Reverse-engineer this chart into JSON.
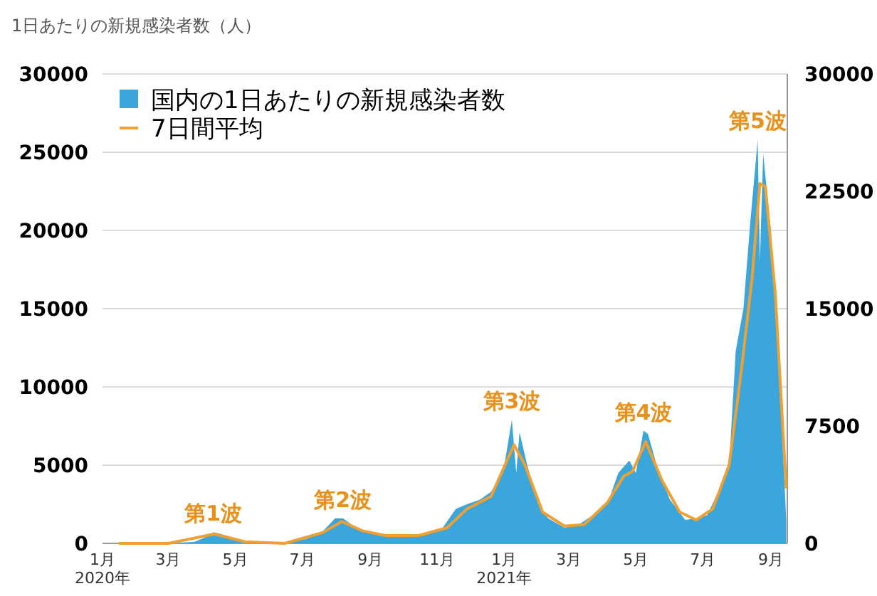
{
  "chart_data": {
    "type": "area",
    "title": "1日あたりの新規感染者数（人）",
    "legend": "top left",
    "grid": "y",
    "xlim": [
      "2020-01-01",
      "2021-09-16"
    ],
    "xticks": [
      {
        "value": "2020-01-01",
        "label": "1月\n2020年"
      },
      {
        "value": "2020-03-01",
        "label": "3月"
      },
      {
        "value": "2020-05-01",
        "label": "5月"
      },
      {
        "value": "2020-07-01",
        "label": "7月"
      },
      {
        "value": "2020-09-01",
        "label": "9月"
      },
      {
        "value": "2020-11-01",
        "label": "11月"
      },
      {
        "value": "2021-01-01",
        "label": "1月\n2021年"
      },
      {
        "value": "2021-03-01",
        "label": "3月"
      },
      {
        "value": "2021-05-01",
        "label": "5月"
      },
      {
        "value": "2021-07-01",
        "label": "7月"
      },
      {
        "value": "2021-09-01",
        "label": "9月"
      }
    ],
    "ylim": [
      0,
      30000
    ],
    "yticks": [
      0,
      5000,
      10000,
      15000,
      20000,
      25000,
      30000
    ],
    "y2lim": [
      0,
      30000
    ],
    "y2ticks": [
      0,
      7500,
      15000,
      22500,
      30000
    ],
    "series": [
      {
        "name": "国内の1日あたりの新規感染者数",
        "type": "area",
        "color": "#3aa6dc",
        "x": [
          "2020-01-16",
          "2020-03-01",
          "2020-03-25",
          "2020-04-04",
          "2020-04-11",
          "2020-04-18",
          "2020-05-01",
          "2020-05-15",
          "2020-06-01",
          "2020-06-20",
          "2020-07-05",
          "2020-07-20",
          "2020-07-31",
          "2020-08-07",
          "2020-08-15",
          "2020-08-25",
          "2020-09-05",
          "2020-09-20",
          "2020-10-05",
          "2020-10-20",
          "2020-11-05",
          "2020-11-18",
          "2020-11-28",
          "2020-12-10",
          "2020-12-20",
          "2020-12-31",
          "2021-01-08",
          "2021-01-12",
          "2021-01-15",
          "2021-01-22",
          "2021-02-01",
          "2021-02-10",
          "2021-02-25",
          "2021-03-10",
          "2021-03-25",
          "2021-04-05",
          "2021-04-15",
          "2021-04-25",
          "2021-05-01",
          "2021-05-08",
          "2021-05-12",
          "2021-05-20",
          "2021-06-01",
          "2021-06-15",
          "2021-06-25",
          "2021-07-05",
          "2021-07-15",
          "2021-07-25",
          "2021-07-31",
          "2021-08-07",
          "2021-08-13",
          "2021-08-20",
          "2021-08-22",
          "2021-08-25",
          "2021-09-01",
          "2021-09-08",
          "2021-09-15"
        ],
        "values": [
          0,
          0,
          100,
          400,
          700,
          600,
          200,
          0,
          0,
          100,
          300,
          800,
          1600,
          1600,
          1200,
          800,
          600,
          500,
          500,
          600,
          900,
          2200,
          2500,
          2800,
          3300,
          4500,
          7900,
          4500,
          7100,
          5000,
          2500,
          1600,
          1000,
          1200,
          1900,
          2500,
          4500,
          5300,
          4500,
          7200,
          7000,
          5000,
          2800,
          1500,
          1600,
          1800,
          3300,
          5000,
          12300,
          15000,
          20300,
          25800,
          18000,
          24900,
          20000,
          12000,
          1500
        ]
      },
      {
        "name": "7日間平均",
        "type": "line",
        "color": "#f0a030",
        "x": [
          "2020-01-16",
          "2020-03-01",
          "2020-04-12",
          "2020-05-10",
          "2020-06-15",
          "2020-07-20",
          "2020-08-06",
          "2020-08-25",
          "2020-09-15",
          "2020-10-15",
          "2020-11-10",
          "2020-11-28",
          "2020-12-20",
          "2021-01-10",
          "2021-01-20",
          "2021-02-05",
          "2021-02-25",
          "2021-03-15",
          "2021-04-05",
          "2021-04-20",
          "2021-04-28",
          "2021-05-10",
          "2021-05-25",
          "2021-06-10",
          "2021-06-25",
          "2021-07-10",
          "2021-07-25",
          "2021-08-05",
          "2021-08-15",
          "2021-08-22",
          "2021-08-27",
          "2021-09-05",
          "2021-09-15"
        ],
        "values": [
          0,
          0,
          600,
          100,
          0,
          700,
          1400,
          800,
          500,
          500,
          1000,
          2200,
          3000,
          6300,
          5000,
          2000,
          1100,
          1200,
          2600,
          4300,
          4600,
          6500,
          4000,
          2000,
          1500,
          2200,
          5000,
          11000,
          17000,
          23000,
          22800,
          16000,
          3500
        ]
      }
    ],
    "annotations": [
      {
        "text": "第1波",
        "x": "2020-04-11",
        "y": 720
      },
      {
        "text": "第2波",
        "x": "2020-08-07",
        "y": 1600
      },
      {
        "text": "第3波",
        "x": "2021-01-08",
        "y": 7900
      },
      {
        "text": "第4波",
        "x": "2021-05-08",
        "y": 7200
      },
      {
        "text": "第5波",
        "x": "2021-08-20",
        "y": 25800
      }
    ]
  }
}
